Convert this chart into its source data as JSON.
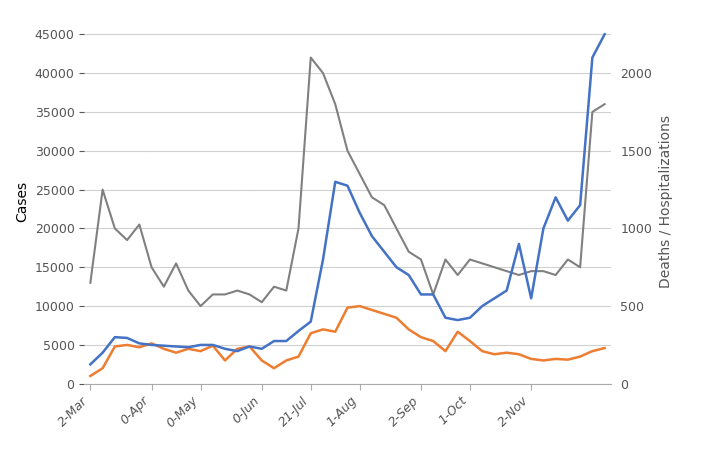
{
  "title": "",
  "ylabel_left": "Cases",
  "ylabel_right": "Deaths / Hospitalizations",
  "xtick_labels": [
    "2-Mar",
    "0-Apr",
    "0-May",
    "0-Jun",
    "21-Jul",
    "1-Aug",
    "2-Sep",
    "1-Oct",
    "2-Nov"
  ],
  "ylim_left": [
    0,
    47000
  ],
  "ylim_right": [
    0,
    2350
  ],
  "yticks_left": [
    0,
    5000,
    10000,
    15000,
    20000,
    25000,
    30000,
    35000,
    40000,
    45000
  ],
  "yticks_right": [
    0,
    500,
    1000,
    1500,
    2000
  ],
  "background_color": "#ffffff",
  "grid_color": "#d0d0d0",
  "cases_color": "#4472c4",
  "orange_color": "#ed7d31",
  "gray_color": "#808080",
  "xtick_positions": [
    0,
    5,
    9,
    14,
    18,
    22,
    27,
    31,
    36
  ],
  "x_indices": [
    0,
    1,
    2,
    3,
    4,
    5,
    6,
    7,
    8,
    9,
    10,
    11,
    12,
    13,
    14,
    15,
    16,
    17,
    18,
    19,
    20,
    21,
    22,
    23,
    24,
    25,
    26,
    27,
    28,
    29,
    30,
    31,
    32,
    33,
    34,
    35,
    36,
    37,
    38,
    39,
    40,
    41,
    42
  ],
  "cases_data": [
    2500,
    4000,
    6000,
    5900,
    5200,
    5000,
    4900,
    4800,
    4700,
    5000,
    5000,
    4500,
    4200,
    4800,
    4500,
    5500,
    5500,
    6800,
    8000,
    16000,
    26000,
    25500,
    22000,
    19000,
    17000,
    15000,
    14000,
    11500,
    11500,
    8500,
    8200,
    8500,
    10000,
    11000,
    12000,
    18000,
    11000,
    20000,
    24000,
    21000,
    23000,
    42000,
    45000
  ],
  "gray_data": [
    13000,
    25000,
    20000,
    18500,
    20500,
    15000,
    12500,
    15500,
    12000,
    10000,
    11500,
    11500,
    12000,
    11500,
    10500,
    12500,
    12000,
    20000,
    42000,
    40000,
    36000,
    30000,
    27000,
    24000,
    23000,
    20000,
    17000,
    16000,
    11500,
    16000,
    14000,
    16000,
    15500,
    15000,
    14500,
    14000,
    14500,
    14500,
    14000,
    16000,
    15000,
    35000,
    36000
  ],
  "orange_data": [
    1000,
    2000,
    4800,
    5000,
    4700,
    5200,
    4500,
    4000,
    4500,
    4200,
    4900,
    3000,
    4500,
    4800,
    3000,
    2000,
    3000,
    3500,
    6500,
    7000,
    6700,
    9800,
    10000,
    9500,
    9000,
    8500,
    7000,
    6000,
    5500,
    4200,
    6700,
    5500,
    4200,
    3800,
    4000,
    3800,
    3200,
    3000,
    3200,
    3100,
    3500,
    4200,
    4600
  ],
  "tick_fontsize": 9,
  "label_fontsize": 10,
  "linewidth_cases": 1.8,
  "linewidth_gray": 1.5,
  "linewidth_orange": 1.8
}
